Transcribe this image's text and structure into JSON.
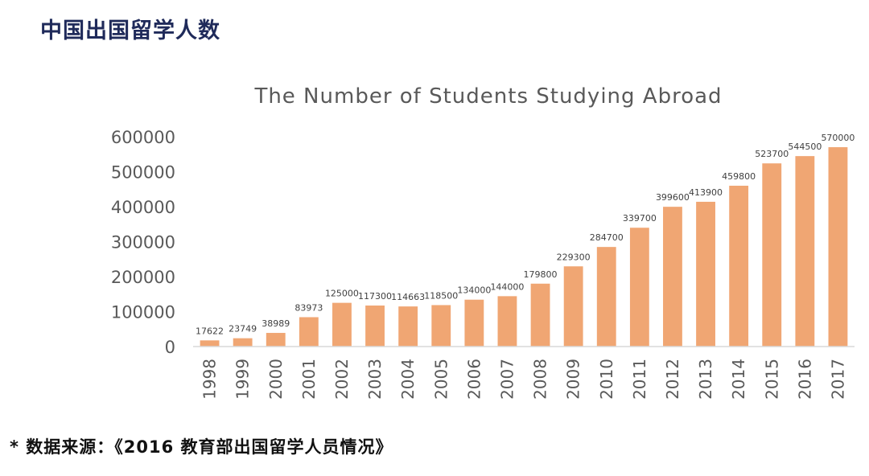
{
  "page_title": "中国出国留学人数",
  "footnote": "* 数据来源：《2016 教育部出国留学人员情况》",
  "colors": {
    "bar": "#f0a673",
    "title": "#1f2a5a",
    "axis_text": "#595959"
  },
  "chart_data": {
    "type": "bar",
    "title": "The Number of Students Studying Abroad",
    "xlabel": "",
    "ylabel": "",
    "ylim": [
      0,
      600000
    ],
    "yticks": [
      0,
      100000,
      200000,
      300000,
      400000,
      500000,
      600000
    ],
    "ytick_labels": [
      "0",
      "100000",
      "200000",
      "300000",
      "400000",
      "500000",
      "600000"
    ],
    "grid": false,
    "legend": "none",
    "categories": [
      "1998",
      "1999",
      "2000",
      "2001",
      "2002",
      "2003",
      "2004",
      "2005",
      "2006",
      "2007",
      "2008",
      "2009",
      "2010",
      "2011",
      "2012",
      "2013",
      "2014",
      "2015",
      "2016",
      "2017"
    ],
    "values": [
      17622,
      23749,
      38989,
      83973,
      125000,
      117300,
      114663,
      118500,
      134000,
      144000,
      179800,
      229300,
      284700,
      339700,
      399600,
      413900,
      459800,
      523700,
      544500,
      570000
    ],
    "value_labels": [
      "17622",
      "23749",
      "38989",
      "83973",
      "125000",
      "117300",
      "114663",
      "118500",
      "134000",
      "144000",
      "179800",
      "229300",
      "284700",
      "339700",
      "399600",
      "413900",
      "459800",
      "523700",
      "544500",
      "570000"
    ]
  }
}
